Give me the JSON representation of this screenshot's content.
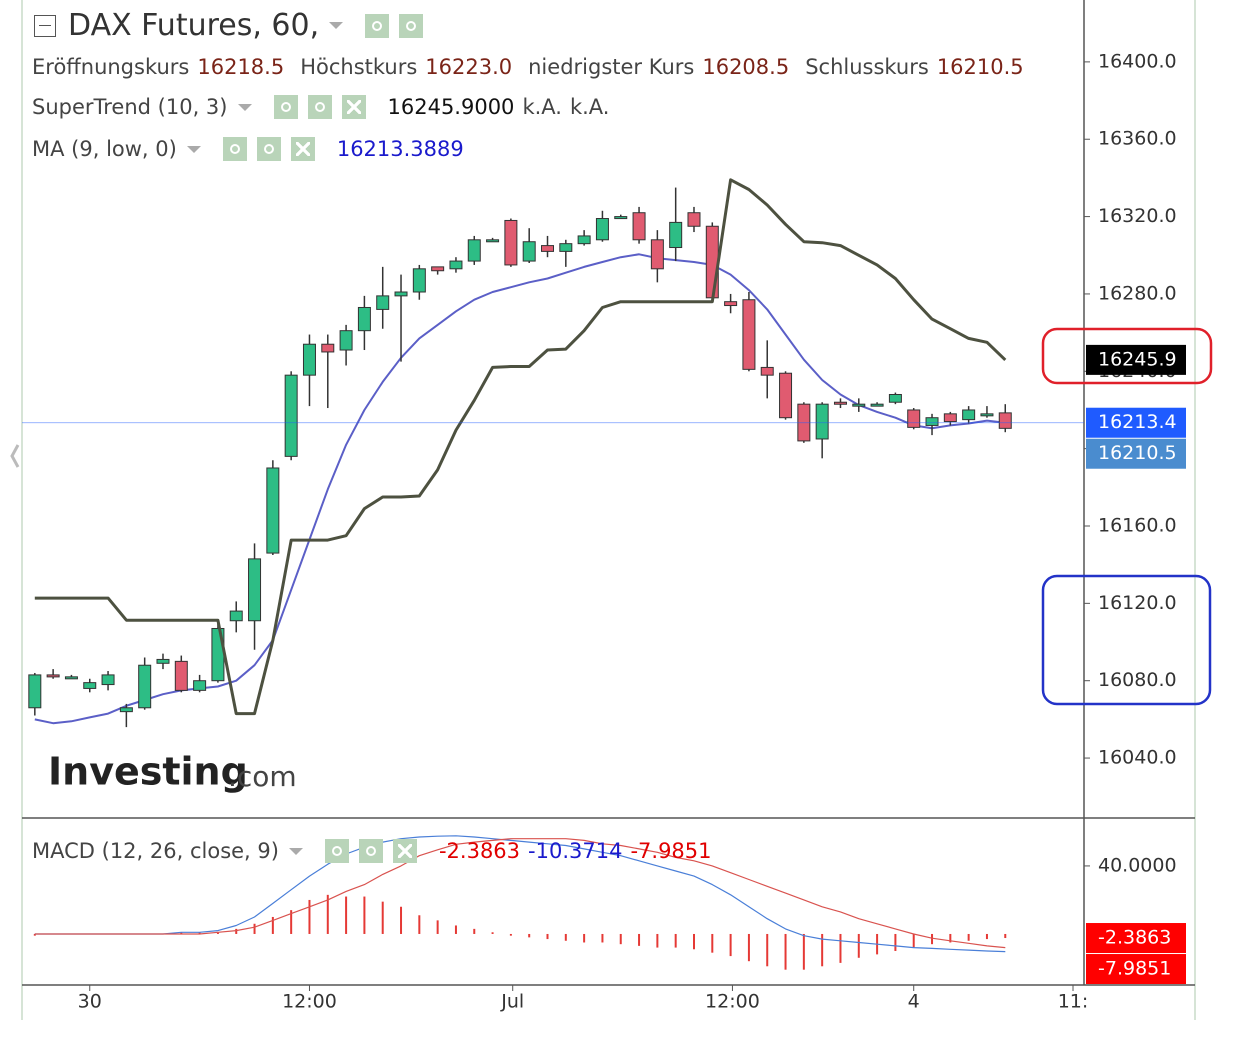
{
  "chart_data": [
    {
      "type": "candlestick",
      "title": "DAX Futures, 60,",
      "ohlc_labels": [
        "Eröffnungskurs",
        "Höchstkurs",
        "niedrigster Kurs",
        "Schlusskurs"
      ],
      "ohlc_values": [
        16218.5,
        16223.0,
        16208.5,
        16210.5
      ],
      "ohlc_value_labels": [
        "16218.5",
        "16223.0",
        "16208.5",
        "16210.5"
      ],
      "watermark": [
        "Investing",
        ".com"
      ],
      "x": [
        0,
        1,
        2,
        3,
        4,
        5,
        6,
        7,
        8,
        9,
        10,
        11,
        12,
        13,
        14,
        15,
        16,
        17,
        18,
        19,
        20,
        21,
        22,
        23,
        24,
        25,
        26,
        27,
        28,
        29,
        30,
        31,
        32,
        33,
        34,
        35,
        36,
        37,
        38,
        39,
        40,
        41,
        42,
        43,
        44,
        45,
        46,
        47,
        48,
        49,
        50,
        51,
        52,
        53
      ],
      "open": [
        16066,
        16083,
        16082,
        16076,
        16078,
        16064,
        16066,
        16089,
        16090,
        16075,
        16080,
        16111,
        16111,
        16146,
        16196,
        16238,
        16254,
        16251,
        16261,
        16272,
        16279,
        16281,
        16294,
        16293,
        16297,
        16308,
        16318,
        16297,
        16305,
        16302,
        16306,
        16308,
        16320,
        16322,
        16308,
        16304,
        16322,
        16315,
        16276,
        16277,
        16242,
        16239,
        16223,
        16205,
        16224,
        16222,
        16223,
        16224,
        16220,
        16212,
        16218,
        16215,
        16218,
        16218.5
      ],
      "high": [
        16084,
        16086,
        16083,
        16081,
        16085,
        16068,
        16092,
        16094,
        16093,
        16083,
        16110,
        16121,
        16151,
        16194,
        16240,
        16259,
        16259,
        16264,
        16279,
        16294,
        16290,
        16295,
        16294,
        16299,
        16310,
        16309,
        16319,
        16314,
        16310,
        16308,
        16313,
        16323,
        16321,
        16325,
        16313,
        16335,
        16325,
        16317,
        16280,
        16281,
        16256,
        16240,
        16224,
        16224,
        16226,
        16226,
        16224,
        16229,
        16221,
        16218,
        16219,
        16222,
        16222,
        16223
      ],
      "low": [
        16062,
        16081,
        16081,
        16074,
        16075,
        16056,
        16065,
        16086,
        16074,
        16074,
        16079,
        16105,
        16096,
        16145,
        16194,
        16222,
        16221,
        16243,
        16251,
        16262,
        16245,
        16277,
        16290,
        16291,
        16295,
        16307,
        16294,
        16296,
        16299,
        16294,
        16305,
        16307,
        16319,
        16306,
        16286,
        16297,
        16312,
        16276,
        16270,
        16240,
        16226,
        16215,
        16203,
        16195,
        16221,
        16219,
        16222,
        16223,
        16210,
        16207,
        16212,
        16213,
        16216,
        16208.5
      ],
      "close": [
        16083,
        16082,
        16082,
        16079,
        16083,
        16066,
        16088,
        16091,
        16075,
        16080,
        16107,
        16116,
        16143,
        16190,
        16238,
        16254,
        16250,
        16261,
        16273,
        16279,
        16281,
        16293,
        16292,
        16297,
        16308,
        16308,
        16295,
        16307,
        16302,
        16306,
        16310,
        16319,
        16320,
        16308,
        16293,
        16317,
        16315,
        16278,
        16274,
        16241,
        16238,
        16216,
        16204,
        16223,
        16223,
        16223,
        16223,
        16228,
        16211,
        16216,
        16214,
        16220,
        16218,
        16210.5
      ],
      "up_color": "#2dbd85",
      "down_color": "#e05b70",
      "series": [
        {
          "name": "SuperTrend (10, 3)",
          "value_label": "16245.9000",
          "extras": [
            "k.A.",
            "k.A."
          ],
          "legend_color": "#111",
          "color": "#4d5140",
          "width": 3,
          "values": [
            16122.7,
            16122.7,
            16122.7,
            16122.7,
            16122.7,
            16111.3,
            16111.3,
            16111.3,
            16111.3,
            16111.3,
            16111.3,
            16063,
            16063,
            16101,
            16152.7,
            16152.7,
            16152.7,
            16155,
            16169,
            16175,
            16175,
            16175.5,
            16189,
            16209.6,
            16225,
            16242,
            16242.5,
            16242.5,
            16251,
            16251.5,
            16261,
            16273,
            16276,
            16276,
            16276,
            16276,
            16276,
            16276,
            16339,
            16334,
            16326,
            16316,
            16307,
            16306.5,
            16305,
            16300,
            16295,
            16288,
            16277,
            16267,
            16262,
            16257,
            16255,
            16245.9
          ]
        },
        {
          "name": "MA (9, low, 0)",
          "value_label": "16213.3889",
          "legend_color": "#1a1acc",
          "color": "#5b5fc7",
          "width": 2,
          "values": [
            16060,
            16058,
            16059,
            16061,
            16063,
            16067,
            16070,
            16073,
            16075,
            16076,
            16077,
            16080,
            16088,
            16101,
            16127,
            16153,
            16179,
            16202,
            16220,
            16234.5,
            16247,
            16257,
            16264,
            16271,
            16277,
            16281,
            16283.5,
            16286,
            16288,
            16291,
            16294,
            16296.5,
            16299,
            16300.5,
            16298.5,
            16297.5,
            16296.5,
            16295,
            16290,
            16282,
            16272,
            16259,
            16246,
            16235.5,
            16228,
            16222.5,
            16219,
            16216,
            16212,
            16210.5,
            16212,
            16213,
            16214.5,
            16213.3889
          ]
        }
      ],
      "price_markers": [
        {
          "value": 16245.9,
          "color": "#000000"
        },
        {
          "value": 16213.4,
          "color": "#1f5bff",
          "line": true
        },
        {
          "value": 16210.5,
          "color": "#4a8ccf"
        }
      ],
      "xlim": [
        -0.7,
        57.3
      ],
      "ylim": [
        16009,
        16432
      ],
      "yticks": [
        {
          "value": 16040,
          "label": "16040.0"
        },
        {
          "value": 16080,
          "label": "16080.0"
        },
        {
          "value": 16120,
          "label": "16120.0"
        },
        {
          "value": 16160,
          "label": "16160.0"
        },
        {
          "value": 16200,
          "label": "16200.0"
        },
        {
          "value": 16240,
          "label": "16240.0"
        },
        {
          "value": 16280,
          "label": "16280.0"
        },
        {
          "value": 16320,
          "label": "16320.0"
        },
        {
          "value": 16360,
          "label": "16360.0"
        },
        {
          "value": 16400,
          "label": "16400.0"
        }
      ]
    },
    {
      "type": "macd",
      "title": "MACD (12, 26, close, 9)",
      "x": [
        0,
        1,
        2,
        3,
        4,
        5,
        6,
        7,
        8,
        9,
        10,
        11,
        12,
        13,
        14,
        15,
        16,
        17,
        18,
        19,
        20,
        21,
        22,
        23,
        24,
        25,
        26,
        27,
        28,
        29,
        30,
        31,
        32,
        33,
        34,
        35,
        36,
        37,
        38,
        39,
        40,
        41,
        42,
        43,
        44,
        45,
        46,
        47,
        48,
        49,
        50,
        51,
        52,
        53
      ],
      "series": [
        {
          "style": "bar",
          "color": "#e53935",
          "value_label": "-2.3863",
          "legend_color": "#e00000",
          "values": [
            -1,
            0,
            0,
            0,
            0,
            0,
            0,
            0,
            1,
            1,
            1,
            3,
            6,
            10,
            14,
            20,
            23,
            22,
            22,
            19,
            16,
            11,
            8,
            5,
            3,
            1,
            -1,
            -2,
            -3,
            -4,
            -5,
            -5,
            -6,
            -7,
            -8,
            -8,
            -9,
            -11,
            -13,
            -16,
            -19,
            -21,
            -21,
            -19,
            -17,
            -14,
            -12,
            -10,
            -8,
            -6,
            -5,
            -4,
            -3,
            -2.3863
          ]
        },
        {
          "style": "line",
          "color": "#4a7fd8",
          "value_label": "-10.3714",
          "legend_color": "#1a1acc",
          "values": [
            0,
            0,
            0,
            0,
            0,
            0,
            0,
            0,
            1,
            1,
            2,
            5,
            10,
            18,
            26,
            34,
            41,
            47,
            51,
            54,
            56,
            57,
            57.5,
            57.7,
            57,
            56,
            55,
            54,
            53,
            52,
            50,
            48,
            46,
            43,
            40,
            37,
            34,
            29,
            23,
            16,
            9,
            3,
            -1,
            -3,
            -4,
            -5,
            -6,
            -7,
            -8,
            -8.5,
            -9,
            -9.5,
            -10,
            -10.3714
          ]
        },
        {
          "style": "line",
          "color": "#d9534f",
          "value_label": "-7.9851",
          "legend_color": "#e00000",
          "values": [
            0,
            0,
            0,
            0,
            0,
            0,
            0,
            0,
            0,
            0,
            1,
            2,
            4,
            8,
            12,
            16,
            20,
            25,
            29,
            35,
            40,
            46,
            49.5,
            52.7,
            54,
            55,
            56,
            56,
            56,
            56,
            55,
            53,
            52,
            50,
            48,
            45,
            43,
            40,
            36,
            32,
            28,
            24,
            20,
            16,
            13,
            9,
            6,
            3,
            0,
            -2.5,
            -4,
            -5.5,
            -7,
            -7.9851
          ]
        }
      ],
      "price_markers": [
        {
          "value": -2.3863,
          "color": "#ff0000"
        },
        {
          "value": -7.9851,
          "color": "#ff0000"
        }
      ],
      "xlim": [
        -0.7,
        57.3
      ],
      "ylim": [
        -30,
        67
      ],
      "yticks": [
        {
          "value": 40,
          "label": "40.0000"
        }
      ],
      "xticks": [
        {
          "value": 3.0,
          "label": "30"
        },
        {
          "value": 15.0,
          "label": "12:00"
        },
        {
          "value": 26.1,
          "label": "Jul"
        },
        {
          "value": 38.1,
          "label": "12:00"
        },
        {
          "value": 48.0,
          "label": "4"
        },
        {
          "value": 56.7,
          "label": "11:"
        }
      ]
    }
  ]
}
